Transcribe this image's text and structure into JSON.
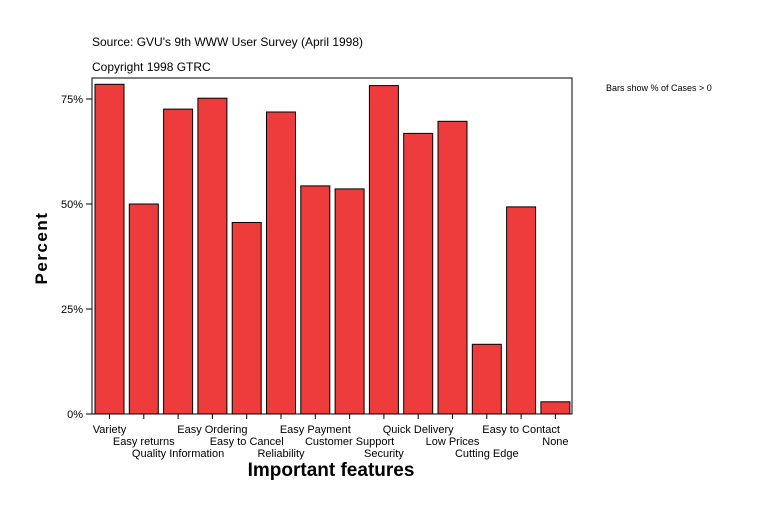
{
  "header": {
    "source": "Source: GVU's 9th WWW User Survey (April 1998)",
    "copyright": "Copyright 1998 GTRC"
  },
  "note": "Bars show % of Cases > 0",
  "colors": {
    "bar": "#ee3b3b",
    "bar_stroke": "#000000",
    "frame": "#000000",
    "background": "#ffffff"
  },
  "chart_data": {
    "type": "bar",
    "title": "",
    "xlabel": "Important features",
    "ylabel": "Percent",
    "ylim": [
      0,
      80
    ],
    "yticks": [
      0,
      25,
      50,
      75
    ],
    "ytick_labels": [
      "0%",
      "25%",
      "50%",
      "75%"
    ],
    "categories": [
      "Variety",
      "Easy returns",
      "Quality Information",
      "Easy Ordering",
      "Easy to Cancel",
      "Reliability",
      "Easy Payment",
      "Customer Support",
      "Security",
      "Quick Delivery",
      "Low Prices",
      "Cutting Edge",
      "Easy to Contact",
      "None"
    ],
    "values": [
      78.5,
      50.0,
      72.6,
      75.2,
      45.6,
      71.9,
      54.3,
      53.6,
      78.2,
      66.8,
      69.7,
      16.6,
      49.3,
      2.9
    ]
  }
}
